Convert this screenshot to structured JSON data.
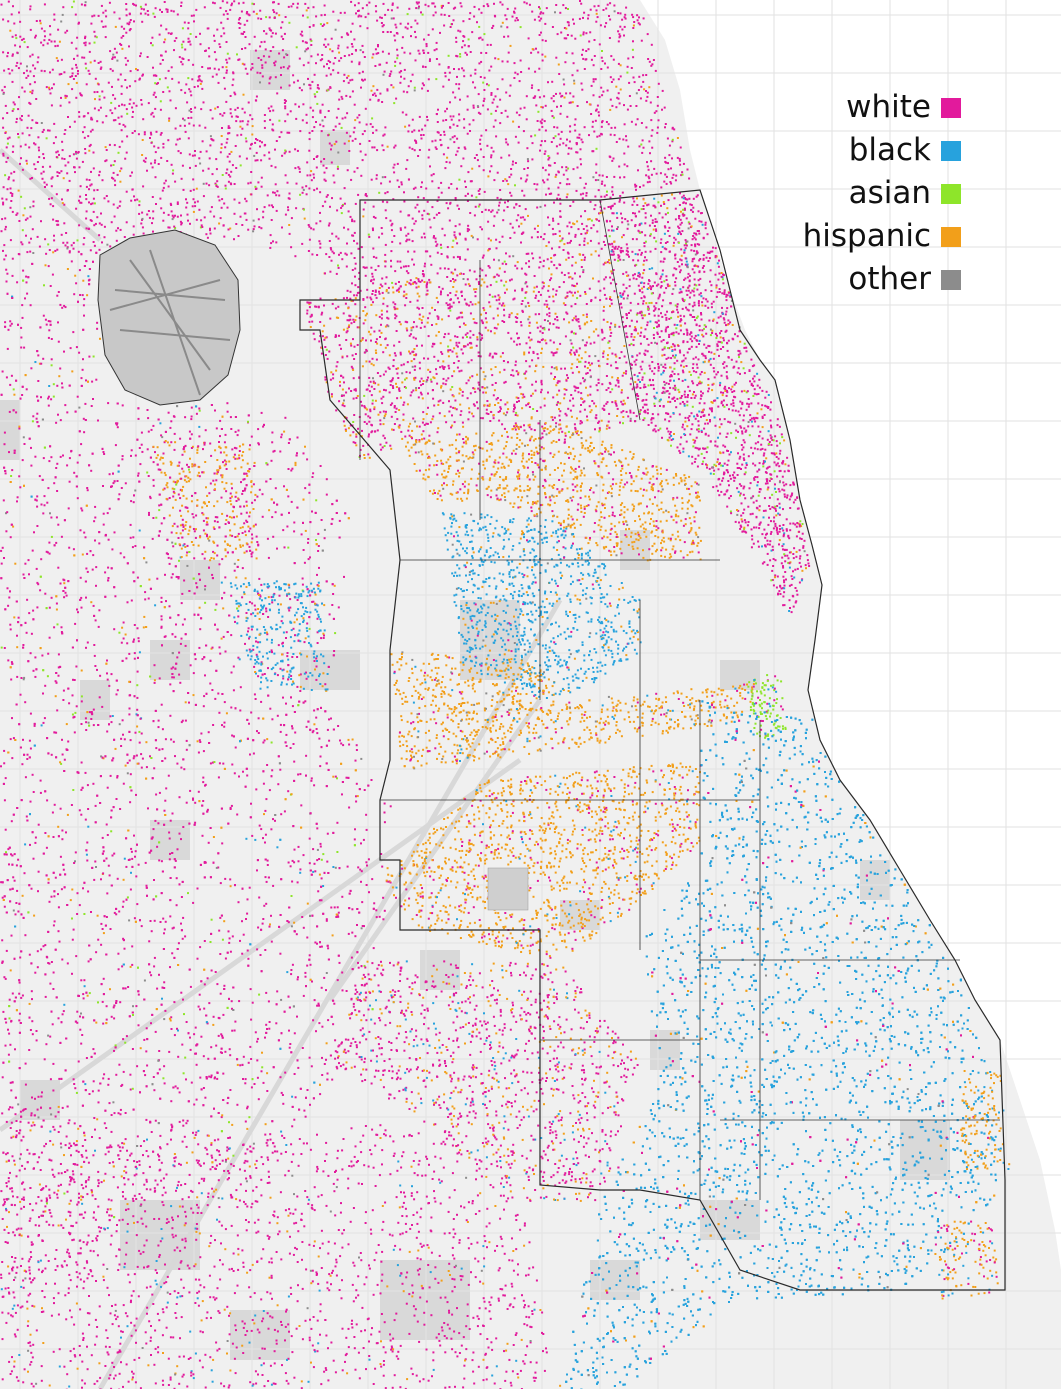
{
  "legend": {
    "items": [
      {
        "label": "white",
        "color": "#e21a9c"
      },
      {
        "label": "black",
        "color": "#27a2dd"
      },
      {
        "label": "asian",
        "color": "#8ee52a"
      },
      {
        "label": "hispanic",
        "color": "#f29f1a"
      },
      {
        "label": "other",
        "color": "#8c8c8c"
      }
    ]
  },
  "colors": {
    "land": "#f0f0f0",
    "water": "#ffffff",
    "parks": "#d9d9d9",
    "roads": "#ffffff",
    "boundary": "#2a2a2a"
  }
}
